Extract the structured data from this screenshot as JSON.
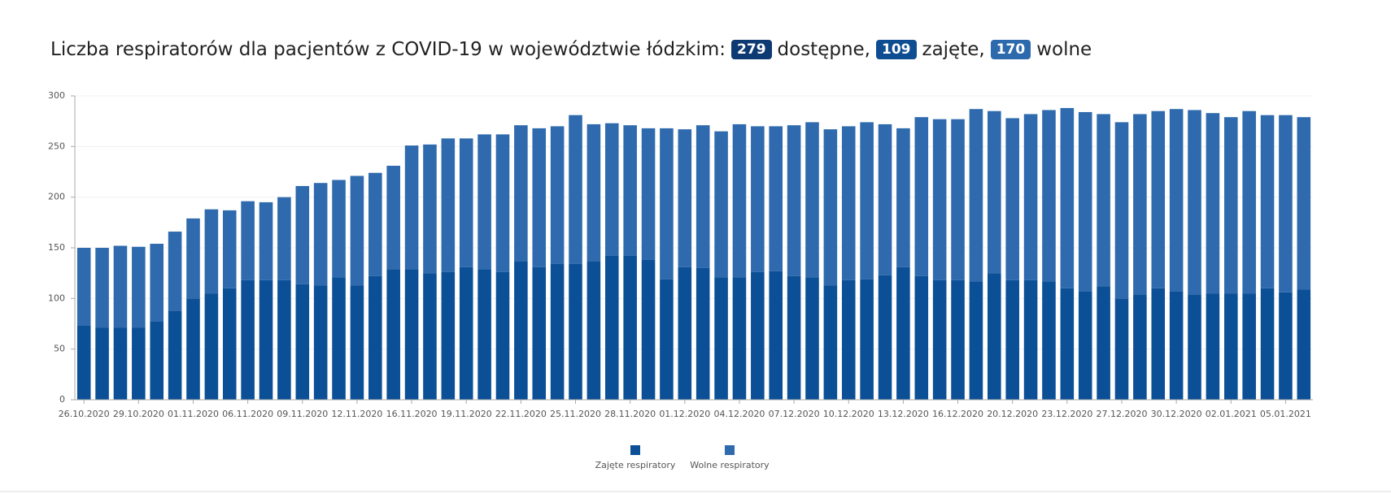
{
  "chart_data": {
    "type": "stacked_bar",
    "title": "Liczba respiratorów dla pacjentów z COVID-19 w województwie łódzkim:",
    "badges": [
      {
        "value": 279,
        "label": "dostępne,",
        "color": "#0d3a73"
      },
      {
        "value": 109,
        "label": "zajęte,",
        "color": "#0e4d92"
      },
      {
        "value": 170,
        "label": "wolne",
        "color": "#2d6aad"
      }
    ],
    "categories": [
      "26.10.2020",
      null,
      null,
      "29.10.2020",
      null,
      null,
      "01.11.2020",
      null,
      null,
      "06.11.2020",
      null,
      null,
      "09.11.2020",
      null,
      null,
      "12.11.2020",
      null,
      null,
      "16.11.2020",
      null,
      null,
      "19.11.2020",
      null,
      null,
      "22.11.2020",
      null,
      null,
      "25.11.2020",
      null,
      null,
      "28.11.2020",
      null,
      null,
      "01.12.2020",
      null,
      null,
      "04.12.2020",
      null,
      null,
      "07.12.2020",
      null,
      null,
      "10.12.2020",
      null,
      null,
      "13.12.2020",
      null,
      null,
      "16.12.2020",
      null,
      null,
      "20.12.2020",
      null,
      null,
      "23.12.2020",
      null,
      null,
      "27.12.2020",
      null,
      null,
      "30.12.2020",
      null,
      null,
      "02.01.2021",
      null,
      null,
      "05.01.2021",
      null
    ],
    "series": [
      {
        "name": "Zajęte respiratory",
        "color": "#0b4f96",
        "values": [
          73,
          71,
          71,
          71,
          77,
          88,
          100,
          105,
          110,
          118,
          118,
          118,
          114,
          113,
          121,
          113,
          122,
          129,
          129,
          125,
          126,
          131,
          129,
          126,
          137,
          131,
          134,
          134,
          137,
          142,
          142,
          138,
          119,
          131,
          130,
          121,
          121,
          126,
          127,
          122,
          121,
          113,
          118,
          119,
          123,
          131,
          122,
          118,
          118,
          117,
          125,
          118,
          118,
          117,
          110,
          107,
          112,
          100,
          104,
          110,
          107,
          104,
          105,
          105,
          105,
          110,
          106,
          109
        ]
      },
      {
        "name": "Wolne respiratory",
        "color": "#2e6aad",
        "values": [
          77,
          79,
          81,
          80,
          77,
          78,
          79,
          83,
          77,
          78,
          77,
          82,
          97,
          101,
          96,
          108,
          102,
          102,
          122,
          127,
          132,
          127,
          133,
          136,
          134,
          137,
          136,
          147,
          135,
          131,
          129,
          130,
          149,
          136,
          141,
          144,
          151,
          144,
          143,
          149,
          153,
          154,
          152,
          155,
          149,
          137,
          157,
          159,
          159,
          170,
          160,
          160,
          164,
          169,
          178,
          177,
          170,
          174,
          178,
          175,
          180,
          182,
          178,
          174,
          180,
          171,
          175,
          170
        ]
      }
    ],
    "ylim": [
      0,
      300
    ],
    "yticks": [
      0,
      50,
      100,
      150,
      200,
      250,
      300
    ],
    "grid": true,
    "legend": "bottom"
  }
}
